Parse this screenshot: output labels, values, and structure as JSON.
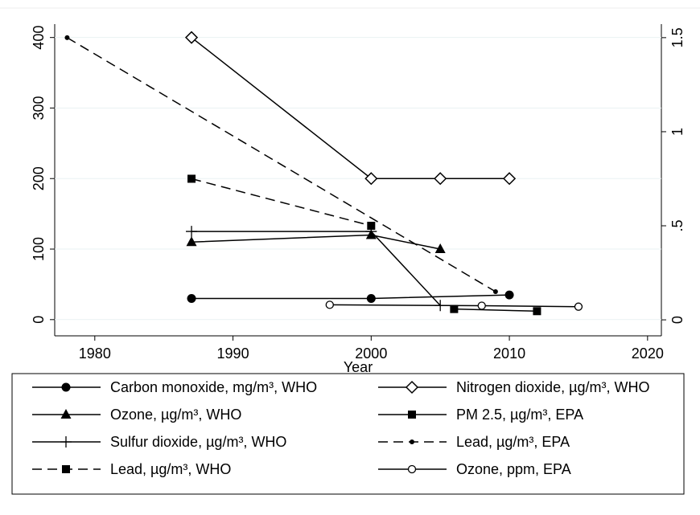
{
  "chart_data": {
    "type": "line",
    "x_label": "Year",
    "xlim": [
      1977.1,
      2021
    ],
    "xticks": [
      1980,
      1990,
      2000,
      2010,
      2020
    ],
    "ylim": [
      -23,
      419
    ],
    "yticks": [
      0,
      100,
      200,
      300,
      400
    ],
    "y2lim": [
      -0.085,
      1.572
    ],
    "y2ticks": [
      0,
      {
        "value": 0.5,
        "label": ".5"
      },
      1,
      1.5
    ],
    "series": [
      {
        "name": "Carbon monoxide, mg/m³, WHO",
        "color": "#000000",
        "marker": "circle-filled",
        "dash": false,
        "x": [
          1987,
          2000,
          2010
        ],
        "values": [
          30,
          30,
          35
        ]
      },
      {
        "name": "Nitrogen dioxide, µg/m³, WHO",
        "color": "#000000",
        "marker": "diamond-hollow",
        "dash": false,
        "x": [
          1987,
          2000,
          2005,
          2010
        ],
        "values": [
          400,
          200,
          200,
          200
        ]
      },
      {
        "name": "Ozone, µg/m³, WHO",
        "color": "#000000",
        "marker": "triangle-filled",
        "dash": false,
        "x": [
          1987,
          2000,
          2005
        ],
        "values": [
          110,
          120,
          100
        ]
      },
      {
        "name": "PM 2.5, µg/m³, EPA",
        "color": "#000000",
        "marker": "square-filled",
        "dash": false,
        "x": [
          2006,
          2012
        ],
        "values": [
          15,
          12
        ]
      },
      {
        "name": "Sulfur dioxide, µg/m³, WHO",
        "color": "#000000",
        "marker": "plus",
        "dash": false,
        "x": [
          1987,
          2000,
          2005
        ],
        "values": [
          125,
          125,
          20
        ]
      },
      {
        "name": "Lead, µg/m³, EPA",
        "color": "#000000",
        "marker": "dot",
        "dash": true,
        "axis": "y2",
        "x": [
          1978,
          2009
        ],
        "values": [
          1.5,
          0.15
        ]
      },
      {
        "name": "Lead, µg/m³, WHO",
        "color": "#000000",
        "marker": "square-filled",
        "dash": true,
        "axis": "y2",
        "x": [
          1987,
          2000
        ],
        "values": [
          0.75,
          0.5
        ]
      },
      {
        "name": "Ozone, ppm, EPA",
        "color": "#000000",
        "marker": "circle-hollow",
        "dash": false,
        "axis": "y2",
        "x": [
          1997,
          2008,
          2015
        ],
        "values": [
          0.08,
          0.075,
          0.07
        ]
      }
    ]
  }
}
